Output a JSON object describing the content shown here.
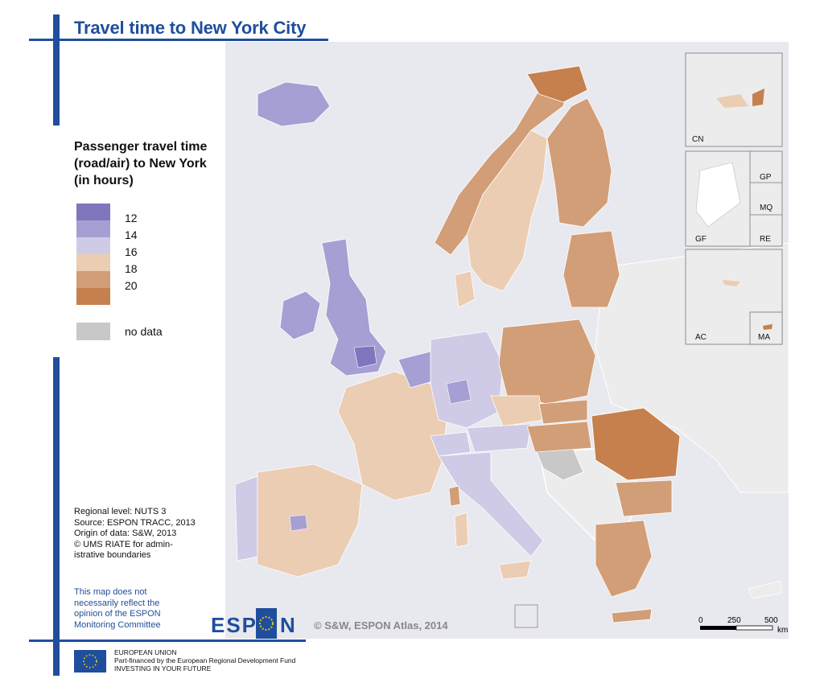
{
  "title": "Travel time to New York City",
  "legend": {
    "title_lines": [
      "Passenger travel time",
      "(road/air) to New York",
      "(in hours)"
    ],
    "classes": [
      {
        "label": "12",
        "color": "#7f76bd"
      },
      {
        "label": "14",
        "color": "#a59fd3"
      },
      {
        "label": "16",
        "color": "#cfcbe6"
      },
      {
        "label": "18",
        "color": "#ebcdb3"
      },
      {
        "label": "20",
        "color": "#d29e77"
      },
      {
        "label": "",
        "color": "#c5804d"
      }
    ],
    "nodata_label": "no data",
    "nodata_color": "#c8c8c8"
  },
  "sources": [
    "Regional level: NUTS 3",
    "Source: ESPON TRACC, 2013",
    "Origin of data: S&W, 2013",
    "© UMS RIATE for admin-",
    "istrative boundaries"
  ],
  "disclaimer": [
    "This map does not",
    "necessarily reflect the",
    "opinion of the ESPON",
    "Monitoring Committee"
  ],
  "logo_text": {
    "left": "ESP",
    "right": "N"
  },
  "copyright": "© S&W, ESPON Atlas, 2014",
  "eu": {
    "line1": "EUROPEAN UNION",
    "line2": "Part-financed by the European Regional Development Fund",
    "line3": "INVESTING IN YOUR FUTURE"
  },
  "insets": [
    "CN",
    "GP",
    "MQ",
    "GF",
    "RE",
    "AC",
    "MA"
  ],
  "scale": {
    "labels": [
      "0",
      "250",
      "500"
    ],
    "unit": "km"
  },
  "colors": {
    "sea": "#e8e8ef",
    "non_espon": "#ececec",
    "accent": "#1f4e9c"
  }
}
